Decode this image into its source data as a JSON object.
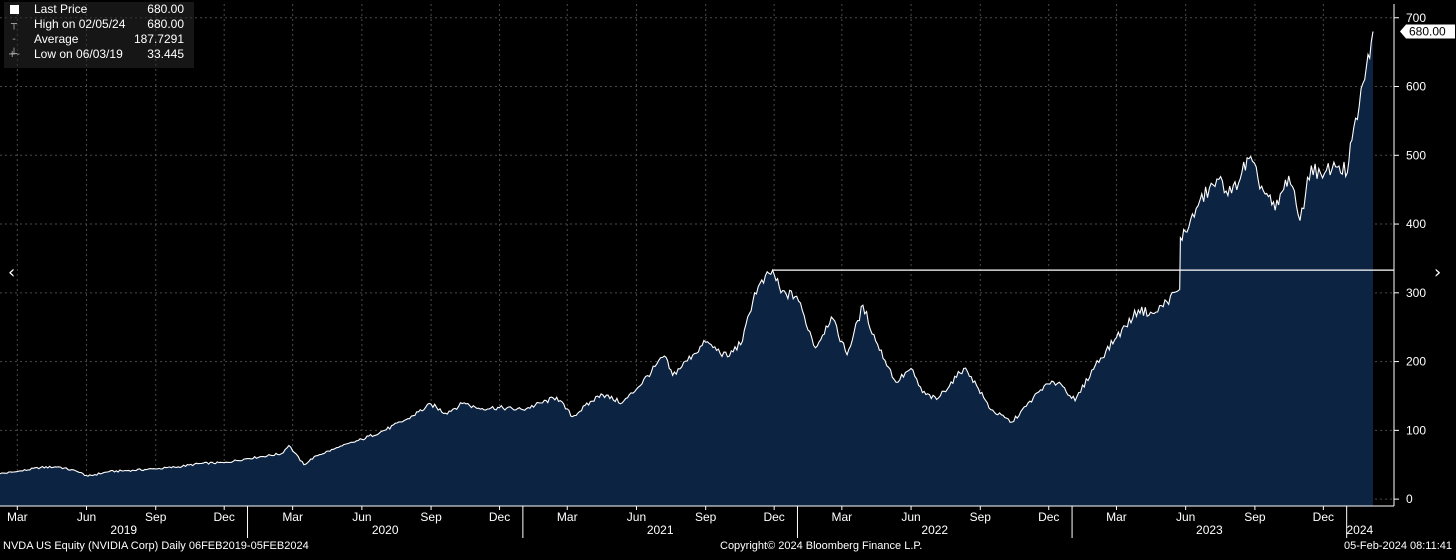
{
  "legend": {
    "last_price_label": "Last Price",
    "last_price_value": "680.00",
    "high_label": "High on 02/05/24",
    "high_value": "680.00",
    "average_label": "Average",
    "average_value": "187.7291",
    "low_label": "Low on 06/03/19",
    "low_value": "33.445"
  },
  "last_price_tag": "680.00",
  "footer": {
    "left": "NVDA US Equity (NVIDIA Corp)  Daily 06FEB2019-05FEB2024",
    "center": "Copyright© 2024 Bloomberg Finance L.P.",
    "right": "05-Feb-2024 08:11:41"
  },
  "nav": {
    "left_icon": "chevron-left-icon",
    "right_icon": "chevron-right-icon"
  },
  "colors": {
    "background": "#000000",
    "area_fill": "#0d2342",
    "line": "#ffffff",
    "grid": "#4a4a4a"
  },
  "chart_data": {
    "type": "area",
    "ylim": [
      -10,
      720
    ],
    "yticks": [
      "0",
      "100",
      "200",
      "300",
      "400",
      "500",
      "600",
      "700"
    ],
    "grid": true,
    "month_ticks": [
      [
        "2019-03-01",
        "Mar"
      ],
      [
        "2019-06-01",
        "Jun"
      ],
      [
        "2019-09-01",
        "Sep"
      ],
      [
        "2019-12-01",
        "Dec"
      ],
      [
        "2020-03-01",
        "Mar"
      ],
      [
        "2020-06-01",
        "Jun"
      ],
      [
        "2020-09-01",
        "Sep"
      ],
      [
        "2020-12-01",
        "Dec"
      ],
      [
        "2021-03-01",
        "Mar"
      ],
      [
        "2021-06-01",
        "Jun"
      ],
      [
        "2021-09-01",
        "Sep"
      ],
      [
        "2021-12-01",
        "Dec"
      ],
      [
        "2022-03-01",
        "Mar"
      ],
      [
        "2022-06-01",
        "Jun"
      ],
      [
        "2022-09-01",
        "Sep"
      ],
      [
        "2022-12-01",
        "Dec"
      ],
      [
        "2023-03-01",
        "Mar"
      ],
      [
        "2023-06-01",
        "Jun"
      ],
      [
        "2023-09-01",
        "Sep"
      ],
      [
        "2023-12-01",
        "Dec"
      ]
    ],
    "year_labels": [
      "2019",
      "2020",
      "2021",
      "2022",
      "2023",
      "2024"
    ],
    "reference_line": {
      "value": 333,
      "from": "2021-11-29",
      "to": "2024-02-05"
    },
    "series": [
      {
        "values": [
          [
            "2019-02-06",
            37
          ],
          [
            "2019-03-01",
            40
          ],
          [
            "2019-04-01",
            46
          ],
          [
            "2019-04-25",
            47
          ],
          [
            "2019-05-20",
            40
          ],
          [
            "2019-06-03",
            33.445
          ],
          [
            "2019-07-01",
            40
          ],
          [
            "2019-08-01",
            42
          ],
          [
            "2019-09-01",
            44
          ],
          [
            "2019-10-01",
            47
          ],
          [
            "2019-11-01",
            52
          ],
          [
            "2019-12-01",
            53
          ],
          [
            "2020-01-01",
            59
          ],
          [
            "2020-02-15",
            66
          ],
          [
            "2020-02-25",
            78
          ],
          [
            "2020-03-16",
            50
          ],
          [
            "2020-04-01",
            63
          ],
          [
            "2020-05-01",
            75
          ],
          [
            "2020-06-01",
            87
          ],
          [
            "2020-07-01",
            100
          ],
          [
            "2020-08-01",
            117
          ],
          [
            "2020-09-01",
            138
          ],
          [
            "2020-09-20",
            125
          ],
          [
            "2020-10-15",
            140
          ],
          [
            "2020-11-01",
            132
          ],
          [
            "2020-12-01",
            133
          ],
          [
            "2021-01-01",
            130
          ],
          [
            "2021-02-15",
            148
          ],
          [
            "2021-03-08",
            120
          ],
          [
            "2021-04-15",
            153
          ],
          [
            "2021-05-13",
            140
          ],
          [
            "2021-06-01",
            160
          ],
          [
            "2021-07-08",
            208
          ],
          [
            "2021-07-19",
            180
          ],
          [
            "2021-08-15",
            210
          ],
          [
            "2021-09-01",
            228
          ],
          [
            "2021-09-30",
            207
          ],
          [
            "2021-10-20",
            230
          ],
          [
            "2021-11-05",
            300
          ],
          [
            "2021-11-29",
            333
          ],
          [
            "2021-12-10",
            300
          ],
          [
            "2021-12-31",
            295
          ],
          [
            "2022-01-25",
            220
          ],
          [
            "2022-02-15",
            265
          ],
          [
            "2022-03-08",
            210
          ],
          [
            "2022-03-29",
            282
          ],
          [
            "2022-04-15",
            230
          ],
          [
            "2022-05-12",
            170
          ],
          [
            "2022-06-01",
            190
          ],
          [
            "2022-06-16",
            155
          ],
          [
            "2022-07-05",
            145
          ],
          [
            "2022-08-10",
            190
          ],
          [
            "2022-08-20",
            178
          ],
          [
            "2022-09-15",
            130
          ],
          [
            "2022-10-13",
            112
          ],
          [
            "2022-11-01",
            135
          ],
          [
            "2022-11-25",
            165
          ],
          [
            "2022-12-15",
            170
          ],
          [
            "2023-01-05",
            143
          ],
          [
            "2023-02-01",
            195
          ],
          [
            "2023-03-01",
            235
          ],
          [
            "2023-03-30",
            275
          ],
          [
            "2023-04-20",
            270
          ],
          [
            "2023-05-24",
            305
          ],
          [
            "2023-05-25",
            380
          ],
          [
            "2023-06-05",
            395
          ],
          [
            "2023-06-20",
            435
          ],
          [
            "2023-07-15",
            465
          ],
          [
            "2023-08-01",
            445
          ],
          [
            "2023-08-24",
            495
          ],
          [
            "2023-09-10",
            455
          ],
          [
            "2023-09-28",
            420
          ],
          [
            "2023-10-16",
            470
          ],
          [
            "2023-10-31",
            405
          ],
          [
            "2023-11-15",
            485
          ],
          [
            "2023-11-30",
            467
          ],
          [
            "2023-12-15",
            490
          ],
          [
            "2024-01-02",
            475
          ],
          [
            "2024-01-08",
            522
          ],
          [
            "2024-01-25",
            610
          ],
          [
            "2024-02-05",
            680
          ]
        ]
      }
    ]
  }
}
